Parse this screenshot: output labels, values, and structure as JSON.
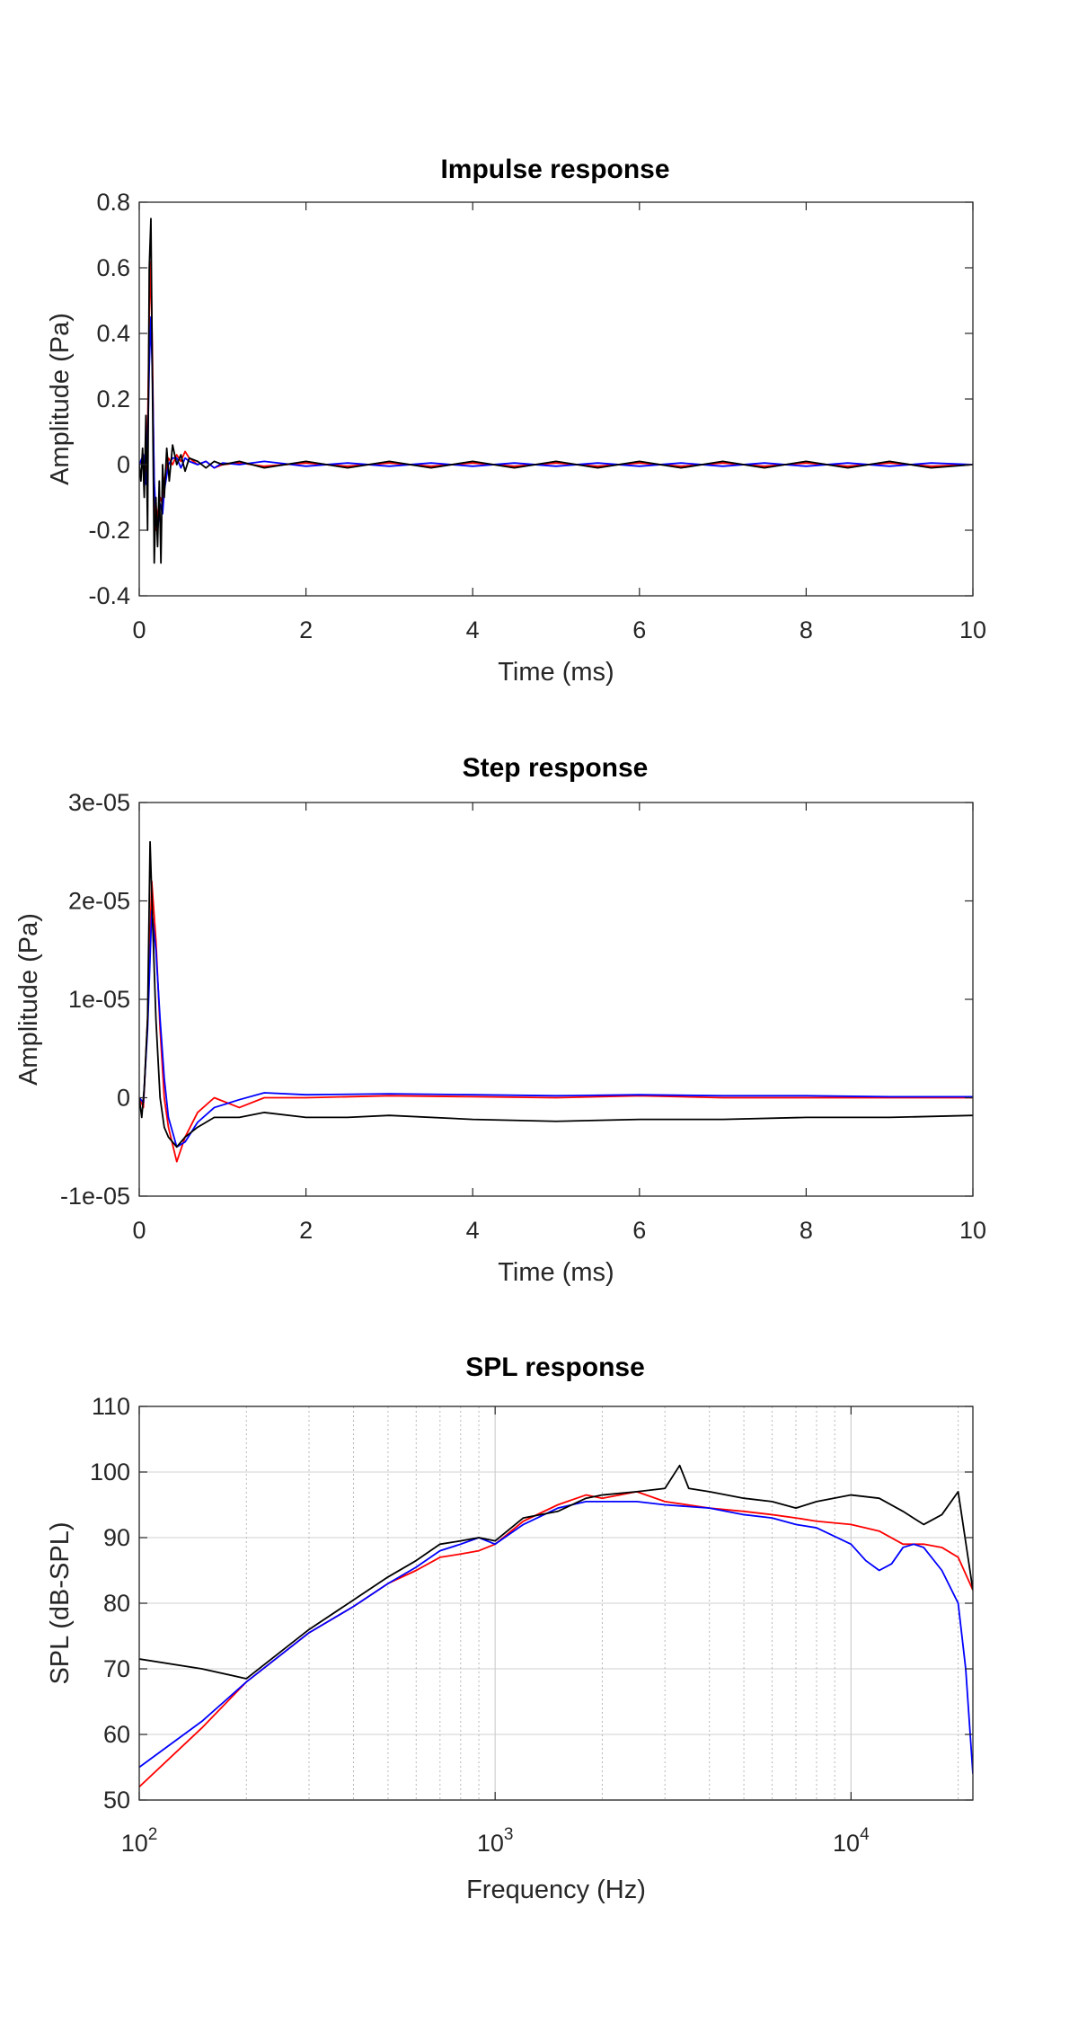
{
  "chart_data": [
    {
      "type": "line",
      "title": "Impulse response",
      "xlabel": "Time (ms)",
      "ylabel": "Amplitude (Pa)",
      "xlim": [
        0,
        10
      ],
      "ylim": [
        -0.4,
        0.8
      ],
      "xscale": "linear",
      "grid": false,
      "xticks": [
        0,
        2,
        4,
        6,
        8,
        10
      ],
      "xtick_labels": [
        "0",
        "2",
        "4",
        "6",
        "8",
        "10"
      ],
      "yticks": [
        -0.4,
        -0.2,
        0,
        0.2,
        0.4,
        0.6,
        0.8
      ],
      "ytick_labels": [
        "-0.4",
        "-0.2",
        "0",
        "0.2",
        "0.4",
        "0.6",
        "0.8"
      ],
      "series": [
        {
          "color": "#ff0000",
          "x": [
            0,
            0.05,
            0.08,
            0.1,
            0.12,
            0.14,
            0.16,
            0.18,
            0.2,
            0.22,
            0.25,
            0.28,
            0.3,
            0.35,
            0.4,
            0.45,
            0.5,
            0.55,
            0.6,
            0.7,
            0.8,
            0.9,
            1.0,
            1.2,
            1.5,
            2.0,
            2.5,
            3.0,
            3.5,
            4.0,
            4.5,
            5.0,
            5.5,
            6.0,
            6.5,
            7.0,
            7.5,
            8.0,
            8.5,
            9.0,
            9.5,
            10.0
          ],
          "y": [
            0,
            0.02,
            -0.05,
            0.1,
            0.45,
            0.62,
            0.3,
            -0.1,
            -0.2,
            -0.15,
            -0.1,
            -0.12,
            -0.05,
            0.02,
            0.0,
            0.03,
            0.01,
            0.04,
            0.02,
            0.0,
            0.01,
            -0.01,
            0.0,
            0.005,
            -0.005,
            0.005,
            -0.005,
            0.005,
            -0.005,
            0.005,
            -0.005,
            0.005,
            -0.005,
            0.005,
            -0.005,
            0.005,
            -0.005,
            0.005,
            -0.005,
            0.005,
            -0.005,
            0.0
          ]
        },
        {
          "color": "#0000ff",
          "x": [
            0,
            0.05,
            0.08,
            0.1,
            0.12,
            0.14,
            0.16,
            0.18,
            0.2,
            0.22,
            0.25,
            0.28,
            0.3,
            0.35,
            0.4,
            0.45,
            0.5,
            0.55,
            0.6,
            0.7,
            0.8,
            0.9,
            1.0,
            1.2,
            1.5,
            2.0,
            2.5,
            3.0,
            3.5,
            4.0,
            4.5,
            5.0,
            5.5,
            6.0,
            6.5,
            7.0,
            7.5,
            8.0,
            8.5,
            9.0,
            9.5,
            10.0
          ],
          "y": [
            0,
            0.03,
            -0.06,
            0.05,
            0.3,
            0.45,
            0.25,
            -0.05,
            -0.15,
            -0.2,
            -0.12,
            -0.15,
            -0.08,
            0.0,
            0.02,
            0.02,
            -0.01,
            0.02,
            0.01,
            0.0,
            0.01,
            -0.01,
            0.005,
            0.0,
            0.01,
            -0.005,
            0.005,
            -0.005,
            0.005,
            -0.005,
            0.005,
            -0.005,
            0.005,
            -0.005,
            0.005,
            -0.005,
            0.005,
            -0.005,
            0.005,
            -0.005,
            0.005,
            0.0
          ]
        },
        {
          "color": "#000000",
          "x": [
            0,
            0.02,
            0.04,
            0.06,
            0.08,
            0.1,
            0.12,
            0.14,
            0.16,
            0.18,
            0.2,
            0.22,
            0.24,
            0.26,
            0.28,
            0.3,
            0.33,
            0.36,
            0.4,
            0.45,
            0.5,
            0.55,
            0.6,
            0.7,
            0.8,
            0.9,
            1.0,
            1.2,
            1.5,
            2.0,
            2.5,
            3.0,
            3.5,
            4.0,
            4.5,
            5.0,
            5.5,
            6.0,
            6.5,
            7.0,
            7.5,
            8.0,
            8.5,
            9.0,
            9.5,
            10.0
          ],
          "y": [
            0,
            -0.05,
            0.05,
            -0.1,
            0.15,
            -0.2,
            0.6,
            0.75,
            0.2,
            -0.3,
            -0.1,
            -0.25,
            -0.05,
            -0.3,
            0.0,
            -0.1,
            0.05,
            -0.05,
            0.06,
            0.0,
            0.03,
            -0.02,
            0.02,
            0.01,
            -0.01,
            0.01,
            0.0,
            0.01,
            -0.01,
            0.01,
            -0.01,
            0.01,
            -0.01,
            0.01,
            -0.01,
            0.01,
            -0.01,
            0.01,
            -0.01,
            0.01,
            -0.01,
            0.01,
            -0.01,
            0.01,
            -0.01,
            0.0
          ]
        }
      ]
    },
    {
      "type": "line",
      "title": "Step response",
      "xlabel": "Time (ms)",
      "ylabel": "Amplitude (Pa)",
      "xlim": [
        0,
        10
      ],
      "ylim": [
        -1e-05,
        3e-05
      ],
      "xscale": "linear",
      "grid": false,
      "xticks": [
        0,
        2,
        4,
        6,
        8,
        10
      ],
      "xtick_labels": [
        "0",
        "2",
        "4",
        "6",
        "8",
        "10"
      ],
      "yticks": [
        -1e-05,
        0,
        1e-05,
        2e-05,
        3e-05
      ],
      "ytick_labels": [
        "-1e-05",
        "0",
        "1e-05",
        "2e-05",
        "3e-05"
      ],
      "series": [
        {
          "color": "#ff0000",
          "x": [
            0,
            0.05,
            0.1,
            0.15,
            0.2,
            0.25,
            0.3,
            0.35,
            0.45,
            0.55,
            0.7,
            0.9,
            1.2,
            1.5,
            2.0,
            3.0,
            4.0,
            5.0,
            6.0,
            7.0,
            8.0,
            9.0,
            10.0
          ],
          "y": [
            0,
            -1e-06,
            8e-06,
            2.2e-05,
            1.6e-05,
            7e-06,
            0,
            -3e-06,
            -6.5e-06,
            -4e-06,
            -1.5e-06,
            0,
            -1e-06,
            0,
            0,
            2e-07,
            1e-07,
            0,
            2e-07,
            0,
            0,
            0,
            0
          ]
        },
        {
          "color": "#0000ff",
          "x": [
            0,
            0.05,
            0.1,
            0.15,
            0.2,
            0.25,
            0.3,
            0.35,
            0.45,
            0.55,
            0.7,
            0.9,
            1.2,
            1.5,
            2.0,
            3.0,
            4.0,
            5.0,
            6.0,
            7.0,
            8.0,
            9.0,
            10.0
          ],
          "y": [
            0,
            -5e-07,
            7e-06,
            1.9e-05,
            1.5e-05,
            8e-06,
            2e-06,
            -2e-06,
            -5e-06,
            -4.5e-06,
            -2.5e-06,
            -1e-06,
            -2e-07,
            5e-07,
            3e-07,
            4e-07,
            3e-07,
            2e-07,
            3e-07,
            2e-07,
            2e-07,
            1e-07,
            1e-07
          ]
        },
        {
          "color": "#000000",
          "x": [
            0,
            0.03,
            0.06,
            0.1,
            0.13,
            0.16,
            0.2,
            0.25,
            0.3,
            0.35,
            0.45,
            0.55,
            0.7,
            0.9,
            1.2,
            1.5,
            2.0,
            2.5,
            3.0,
            4.0,
            5.0,
            6.0,
            7.0,
            8.0,
            9.0,
            10.0
          ],
          "y": [
            0,
            -2e-06,
            1e-06,
            8e-06,
            2.6e-05,
            1.8e-05,
            8e-06,
            0,
            -3e-06,
            -4e-06,
            -5e-06,
            -4e-06,
            -3e-06,
            -2e-06,
            -2e-06,
            -1.5e-06,
            -2e-06,
            -2e-06,
            -1.8e-06,
            -2.2e-06,
            -2.4e-06,
            -2.2e-06,
            -2.2e-06,
            -2e-06,
            -2e-06,
            -1.8e-06
          ]
        }
      ]
    },
    {
      "type": "line",
      "title": "SPL response",
      "xlabel": "Frequency (Hz)",
      "ylabel": "SPL (dB-SPL)",
      "xlim": [
        100,
        22000
      ],
      "ylim": [
        50,
        110
      ],
      "xscale": "log",
      "grid": true,
      "xticks": [
        100,
        1000,
        10000
      ],
      "xtick_labels": [
        [
          "10",
          "2"
        ],
        [
          "10",
          "3"
        ],
        [
          "10",
          "4"
        ]
      ],
      "yticks": [
        50,
        60,
        70,
        80,
        90,
        100,
        110
      ],
      "ytick_labels": [
        "50",
        "60",
        "70",
        "80",
        "90",
        "100",
        "110"
      ],
      "series": [
        {
          "color": "#ff0000",
          "x": [
            100,
            150,
            200,
            300,
            400,
            500,
            600,
            700,
            800,
            900,
            1000,
            1200,
            1500,
            1800,
            2000,
            2500,
            3000,
            4000,
            5000,
            6000,
            7000,
            8000,
            10000,
            12000,
            14000,
            16000,
            18000,
            20000,
            22000
          ],
          "y": [
            52,
            61,
            68,
            75.5,
            79.5,
            83,
            85,
            87,
            87.5,
            88,
            89,
            92.5,
            95,
            96.5,
            96,
            97,
            95.5,
            94.5,
            94,
            93.5,
            93,
            92.5,
            92,
            91,
            89,
            89,
            88.5,
            87,
            82
          ]
        },
        {
          "color": "#0000ff",
          "x": [
            100,
            150,
            200,
            300,
            400,
            500,
            600,
            700,
            800,
            900,
            1000,
            1200,
            1500,
            1800,
            2000,
            2500,
            3000,
            4000,
            5000,
            6000,
            7000,
            8000,
            10000,
            11000,
            12000,
            13000,
            14000,
            15000,
            16000,
            18000,
            20000,
            21000,
            22000
          ],
          "y": [
            55,
            62,
            68,
            75.5,
            79.5,
            83,
            85.5,
            88,
            89,
            90,
            89,
            92,
            94.5,
            95.5,
            95.5,
            95.5,
            95,
            94.5,
            93.5,
            93,
            92,
            91.5,
            89,
            86.5,
            85,
            86,
            88.5,
            89,
            88.5,
            85,
            80,
            70,
            54
          ]
        },
        {
          "color": "#000000",
          "x": [
            100,
            150,
            200,
            300,
            400,
            500,
            600,
            700,
            800,
            900,
            1000,
            1200,
            1500,
            1800,
            2000,
            2500,
            3000,
            3300,
            3500,
            4000,
            5000,
            6000,
            7000,
            8000,
            10000,
            12000,
            14000,
            16000,
            18000,
            20000,
            22000
          ],
          "y": [
            71.5,
            70,
            68.5,
            76,
            80.5,
            84,
            86.5,
            89,
            89.5,
            90,
            89.5,
            93,
            94,
            96,
            96.5,
            97,
            97.5,
            101,
            97.5,
            97,
            96,
            95.5,
            94.5,
            95.5,
            96.5,
            96,
            94,
            92,
            93.5,
            97,
            82
          ]
        }
      ]
    }
  ]
}
